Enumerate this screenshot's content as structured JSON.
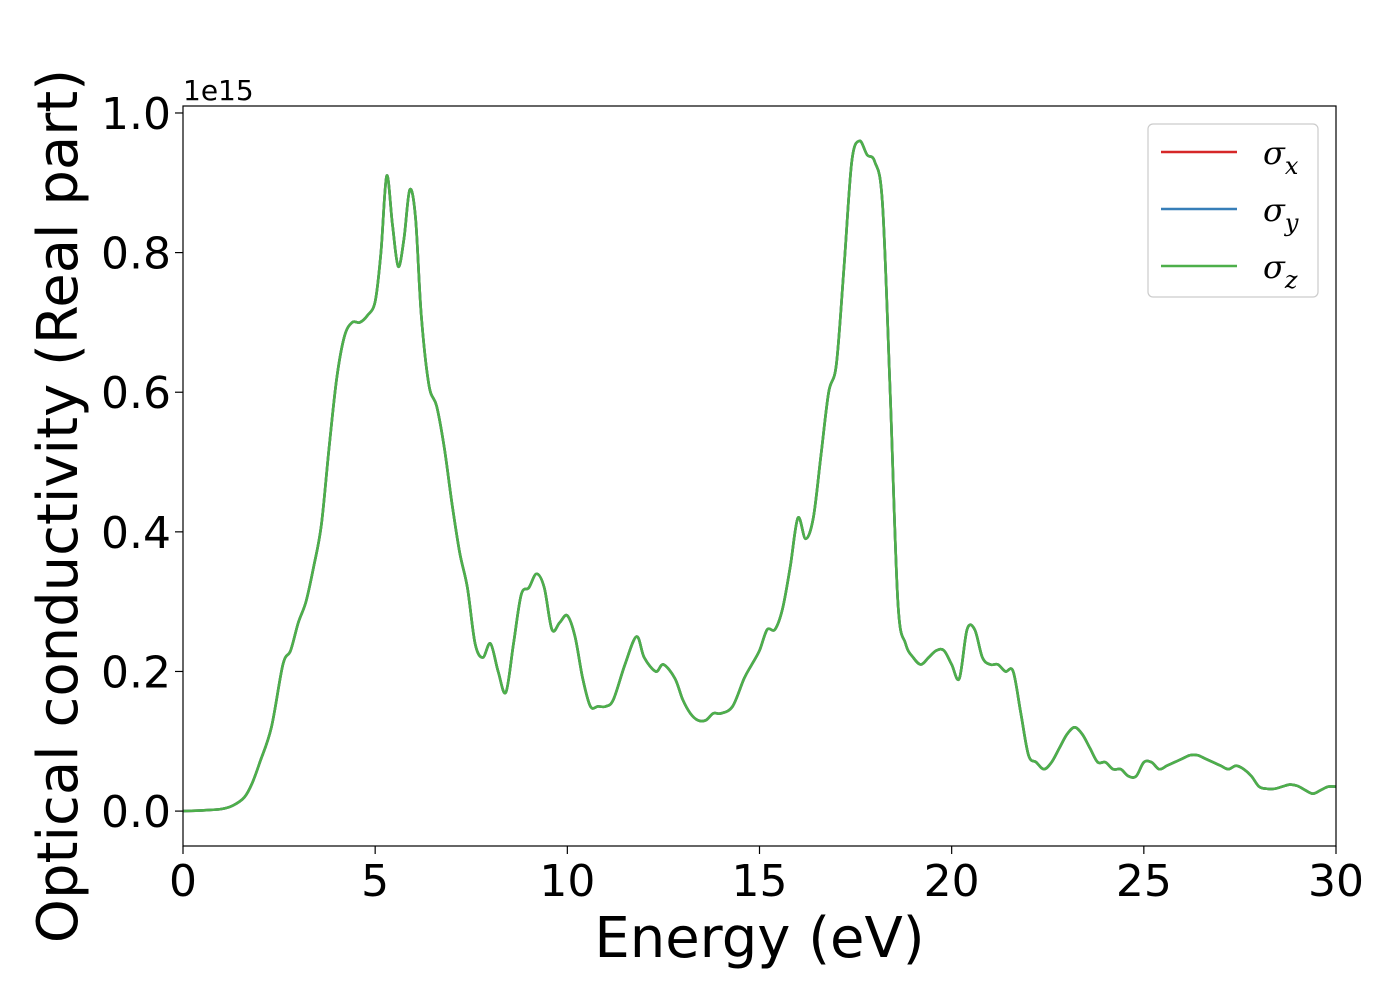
{
  "chart_data": {
    "type": "line",
    "xlabel": "Energy (eV)",
    "ylabel": "Optical conductivity (Real part)",
    "y_offset_text": "1e15",
    "xlim": [
      0,
      30
    ],
    "ylim": [
      -0.05,
      1.01
    ],
    "x_ticks": [
      0,
      5,
      10,
      15,
      20,
      25,
      30
    ],
    "x_tick_labels": [
      "0",
      "5",
      "10",
      "15",
      "20",
      "25",
      "30"
    ],
    "y_ticks": [
      0.0,
      0.2,
      0.4,
      0.6,
      0.8,
      1.0
    ],
    "y_tick_labels": [
      "0.0",
      "0.2",
      "0.4",
      "0.6",
      "0.8",
      "1.0"
    ],
    "grid": false,
    "legend_position": "top-right",
    "series": [
      {
        "name": "σx",
        "color": "#d62728",
        "legend_base": "σ",
        "legend_sub": "x"
      },
      {
        "name": "σy",
        "color": "#377eb8",
        "legend_base": "σ",
        "legend_sub": "y"
      },
      {
        "name": "σz",
        "color": "#4daf4a",
        "legend_base": "σ",
        "legend_sub": "z"
      }
    ],
    "x": [
      0,
      0.5,
      1.0,
      1.3,
      1.6,
      1.8,
      2.0,
      2.3,
      2.6,
      2.8,
      3.0,
      3.2,
      3.4,
      3.6,
      3.8,
      4.0,
      4.2,
      4.4,
      4.6,
      4.8,
      5.0,
      5.15,
      5.3,
      5.45,
      5.6,
      5.75,
      5.9,
      6.05,
      6.2,
      6.4,
      6.6,
      6.8,
      7.0,
      7.2,
      7.4,
      7.6,
      7.8,
      8.0,
      8.2,
      8.4,
      8.6,
      8.8,
      9.0,
      9.2,
      9.4,
      9.6,
      9.8,
      10.0,
      10.2,
      10.4,
      10.6,
      10.8,
      11.0,
      11.2,
      11.5,
      11.8,
      12.0,
      12.3,
      12.5,
      12.8,
      13.0,
      13.2,
      13.4,
      13.6,
      13.8,
      14.0,
      14.3,
      14.6,
      14.8,
      15.0,
      15.2,
      15.4,
      15.6,
      15.8,
      16.0,
      16.2,
      16.4,
      16.6,
      16.8,
      17.0,
      17.2,
      17.4,
      17.6,
      17.8,
      18.0,
      18.2,
      18.4,
      18.6,
      18.8,
      19.0,
      19.2,
      19.4,
      19.6,
      19.8,
      20.0,
      20.2,
      20.4,
      20.6,
      20.8,
      21.0,
      21.2,
      21.4,
      21.6,
      21.8,
      22.0,
      22.2,
      22.4,
      22.6,
      22.8,
      23.0,
      23.2,
      23.4,
      23.6,
      23.8,
      24.0,
      24.2,
      24.4,
      24.6,
      24.8,
      25.0,
      25.2,
      25.4,
      25.6,
      25.8,
      26.0,
      26.2,
      26.4,
      26.6,
      26.8,
      27.0,
      27.2,
      27.4,
      27.6,
      27.8,
      28.0,
      28.2,
      28.4,
      28.6,
      28.8,
      29.0,
      29.2,
      29.4,
      29.6,
      29.8,
      30.0
    ],
    "y": [
      0.0,
      0.001,
      0.003,
      0.008,
      0.02,
      0.04,
      0.07,
      0.12,
      0.21,
      0.23,
      0.27,
      0.3,
      0.35,
      0.41,
      0.52,
      0.62,
      0.68,
      0.7,
      0.7,
      0.71,
      0.73,
      0.8,
      0.91,
      0.84,
      0.78,
      0.82,
      0.89,
      0.85,
      0.71,
      0.61,
      0.58,
      0.52,
      0.44,
      0.37,
      0.32,
      0.24,
      0.22,
      0.24,
      0.2,
      0.17,
      0.24,
      0.31,
      0.32,
      0.34,
      0.32,
      0.26,
      0.27,
      0.28,
      0.25,
      0.19,
      0.15,
      0.15,
      0.15,
      0.16,
      0.21,
      0.25,
      0.22,
      0.2,
      0.21,
      0.19,
      0.16,
      0.14,
      0.13,
      0.13,
      0.14,
      0.14,
      0.15,
      0.19,
      0.21,
      0.23,
      0.26,
      0.26,
      0.29,
      0.35,
      0.42,
      0.39,
      0.42,
      0.51,
      0.6,
      0.64,
      0.78,
      0.93,
      0.96,
      0.94,
      0.93,
      0.87,
      0.6,
      0.3,
      0.24,
      0.22,
      0.21,
      0.22,
      0.23,
      0.23,
      0.21,
      0.19,
      0.26,
      0.26,
      0.22,
      0.21,
      0.21,
      0.2,
      0.2,
      0.14,
      0.08,
      0.07,
      0.06,
      0.07,
      0.09,
      0.11,
      0.12,
      0.11,
      0.09,
      0.07,
      0.07,
      0.06,
      0.06,
      0.05,
      0.05,
      0.07,
      0.07,
      0.06,
      0.065,
      0.07,
      0.075,
      0.08,
      0.08,
      0.075,
      0.07,
      0.065,
      0.06,
      0.065,
      0.06,
      0.05,
      0.035,
      0.032,
      0.032,
      0.035,
      0.038,
      0.036,
      0.03,
      0.025,
      0.03,
      0.035,
      0.035
    ]
  }
}
